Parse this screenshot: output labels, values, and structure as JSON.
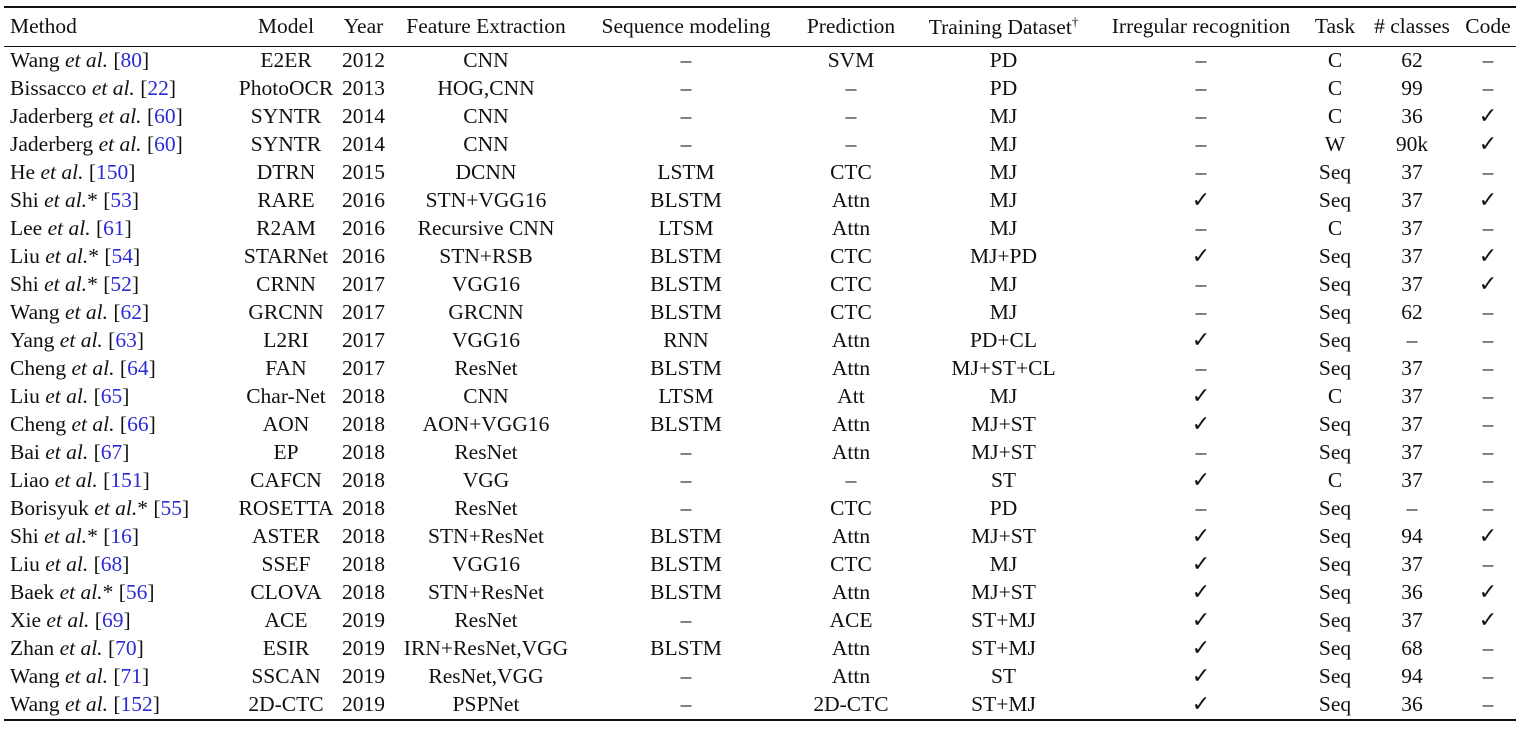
{
  "columns": [
    "Method",
    "Model",
    "Year",
    "Feature Extraction",
    "Sequence modeling",
    "Prediction",
    "Training Dataset",
    "Irregular recognition",
    "Task",
    "# classes",
    "Code"
  ],
  "dagger": "†",
  "rows": [
    {
      "author": "Wang",
      "etal": "et al.",
      "star": "",
      "ref": "80",
      "model": "E2ER",
      "year": "2012",
      "feat": "CNN",
      "seq": "–",
      "pred": "SVM",
      "data": "PD",
      "irr": "–",
      "task": "C",
      "cls": "62",
      "code": "–"
    },
    {
      "author": "Bissacco",
      "etal": "et al.",
      "star": "",
      "ref": "22",
      "model": "PhotoOCR",
      "year": "2013",
      "feat": "HOG,CNN",
      "seq": "–",
      "pred": "–",
      "data": "PD",
      "irr": "–",
      "task": "C",
      "cls": "99",
      "code": "–"
    },
    {
      "author": "Jaderberg",
      "etal": "et al.",
      "star": "",
      "ref": "60",
      "model": "SYNTR",
      "year": "2014",
      "feat": "CNN",
      "seq": "–",
      "pred": "–",
      "data": "MJ",
      "irr": "–",
      "task": "C",
      "cls": "36",
      "code": "✓"
    },
    {
      "author": "Jaderberg",
      "etal": "et al.",
      "star": "",
      "ref": "60",
      "model": "SYNTR",
      "year": "2014",
      "feat": "CNN",
      "seq": "–",
      "pred": "–",
      "data": "MJ",
      "irr": "–",
      "task": "W",
      "cls": "90k",
      "code": "✓"
    },
    {
      "author": "He",
      "etal": "et al.",
      "star": "",
      "ref": "150",
      "model": "DTRN",
      "year": "2015",
      "feat": "DCNN",
      "seq": "LSTM",
      "pred": "CTC",
      "data": "MJ",
      "irr": "–",
      "task": "Seq",
      "cls": "37",
      "code": "–"
    },
    {
      "author": "Shi",
      "etal": "et al.",
      "star": "*",
      "ref": "53",
      "model": "RARE",
      "year": "2016",
      "feat": "STN+VGG16",
      "seq": "BLSTM",
      "pred": "Attn",
      "data": "MJ",
      "irr": "✓",
      "task": "Seq",
      "cls": "37",
      "code": "✓"
    },
    {
      "author": "Lee",
      "etal": "et al.",
      "star": "",
      "ref": "61",
      "model": "R2AM",
      "year": "2016",
      "feat": "Recursive CNN",
      "seq": "LTSM",
      "pred": "Attn",
      "data": "MJ",
      "irr": "–",
      "task": "C",
      "cls": "37",
      "code": "–"
    },
    {
      "author": "Liu",
      "etal": "et al.",
      "star": "*",
      "ref": "54",
      "model": "STARNet",
      "year": "2016",
      "feat": "STN+RSB",
      "seq": "BLSTM",
      "pred": "CTC",
      "data": "MJ+PD",
      "irr": "✓",
      "task": "Seq",
      "cls": "37",
      "code": "✓"
    },
    {
      "author": "Shi",
      "etal": "et al.",
      "star": "*",
      "ref": "52",
      "model": "CRNN",
      "year": "2017",
      "feat": "VGG16",
      "seq": "BLSTM",
      "pred": "CTC",
      "data": "MJ",
      "irr": "–",
      "task": "Seq",
      "cls": "37",
      "code": "✓"
    },
    {
      "author": "Wang",
      "etal": "et al.",
      "star": "",
      "ref": "62",
      "model": "GRCNN",
      "year": "2017",
      "feat": "GRCNN",
      "seq": "BLSTM",
      "pred": "CTC",
      "data": "MJ",
      "irr": "–",
      "task": "Seq",
      "cls": "62",
      "code": "–"
    },
    {
      "author": "Yang",
      "etal": "et al.",
      "star": "",
      "ref": "63",
      "model": "L2RI",
      "year": "2017",
      "feat": "VGG16",
      "seq": "RNN",
      "pred": "Attn",
      "data": "PD+CL",
      "irr": "✓",
      "task": "Seq",
      "cls": "–",
      "code": "–"
    },
    {
      "author": "Cheng",
      "etal": "et al.",
      "star": "",
      "ref": "64",
      "model": "FAN",
      "year": "2017",
      "feat": "ResNet",
      "seq": "BLSTM",
      "pred": "Attn",
      "data": "MJ+ST+CL",
      "irr": "–",
      "task": "Seq",
      "cls": "37",
      "code": "–"
    },
    {
      "author": "Liu",
      "etal": "et al.",
      "star": "",
      "ref": "65",
      "model": "Char-Net",
      "year": "2018",
      "feat": "CNN",
      "seq": "LTSM",
      "pred": "Att",
      "data": "MJ",
      "irr": "✓",
      "task": "C",
      "cls": "37",
      "code": "–"
    },
    {
      "author": "Cheng",
      "etal": "et al.",
      "star": "",
      "ref": "66",
      "model": "AON",
      "year": "2018",
      "feat": "AON+VGG16",
      "seq": "BLSTM",
      "pred": "Attn",
      "data": "MJ+ST",
      "irr": "✓",
      "task": "Seq",
      "cls": "37",
      "code": "–"
    },
    {
      "author": "Bai",
      "etal": "et al.",
      "star": "",
      "ref": "67",
      "model": "EP",
      "year": "2018",
      "feat": "ResNet",
      "seq": "–",
      "pred": "Attn",
      "data": "MJ+ST",
      "irr": "–",
      "task": "Seq",
      "cls": "37",
      "code": "–"
    },
    {
      "author": "Liao",
      "etal": "et al.",
      "star": "",
      "ref": "151",
      "model": "CAFCN",
      "year": "2018",
      "feat": "VGG",
      "seq": "–",
      "pred": "–",
      "data": "ST",
      "irr": "✓",
      "task": "C",
      "cls": "37",
      "code": "–"
    },
    {
      "author": "Borisyuk",
      "etal": "et al.",
      "star": "*",
      "ref": "55",
      "model": "ROSETTA",
      "year": "2018",
      "feat": "ResNet",
      "seq": "–",
      "pred": "CTC",
      "data": "PD",
      "irr": "–",
      "task": "Seq",
      "cls": "–",
      "code": "–"
    },
    {
      "author": "Shi",
      "etal": "et al.",
      "star": "*",
      "ref": "16",
      "model": "ASTER",
      "year": "2018",
      "feat": "STN+ResNet",
      "seq": "BLSTM",
      "pred": "Attn",
      "data": "MJ+ST",
      "irr": "✓",
      "task": "Seq",
      "cls": "94",
      "code": "✓"
    },
    {
      "author": "Liu",
      "etal": "et al.",
      "star": "",
      "ref": "68",
      "model": "SSEF",
      "year": "2018",
      "feat": "VGG16",
      "seq": "BLSTM",
      "pred": "CTC",
      "data": "MJ",
      "irr": "✓",
      "task": "Seq",
      "cls": "37",
      "code": "–"
    },
    {
      "author": "Baek",
      "etal": "et al.",
      "star": "*",
      "ref": "56",
      "model": "CLOVA",
      "year": "2018",
      "feat": "STN+ResNet",
      "seq": "BLSTM",
      "pred": "Attn",
      "data": "MJ+ST",
      "irr": "✓",
      "task": "Seq",
      "cls": "36",
      "code": "✓"
    },
    {
      "author": "Xie",
      "etal": "et al.",
      "star": "",
      "ref": "69",
      "model": "ACE",
      "year": "2019",
      "feat": "ResNet",
      "seq": "–",
      "pred": "ACE",
      "data": "ST+MJ",
      "irr": "✓",
      "task": "Seq",
      "cls": "37",
      "code": "✓"
    },
    {
      "author": "Zhan",
      "etal": "et al.",
      "star": "",
      "ref": "70",
      "model": "ESIR",
      "year": "2019",
      "feat": "IRN+ResNet,VGG",
      "seq": "BLSTM",
      "pred": "Attn",
      "data": "ST+MJ",
      "irr": "✓",
      "task": "Seq",
      "cls": "68",
      "code": "–"
    },
    {
      "author": "Wang",
      "etal": "et al.",
      "star": "",
      "ref": "71",
      "model": "SSCAN",
      "year": "2019",
      "feat": "ResNet,VGG",
      "seq": "–",
      "pred": "Attn",
      "data": "ST",
      "irr": "✓",
      "task": "Seq",
      "cls": "94",
      "code": "–"
    },
    {
      "author": "Wang",
      "etal": "et al.",
      "star": "",
      "ref": "152",
      "model": "2D-CTC",
      "year": "2019",
      "feat": "PSPNet",
      "seq": "–",
      "pred": "2D-CTC",
      "data": "ST+MJ",
      "irr": "✓",
      "task": "Seq",
      "cls": "36",
      "code": "–"
    }
  ]
}
